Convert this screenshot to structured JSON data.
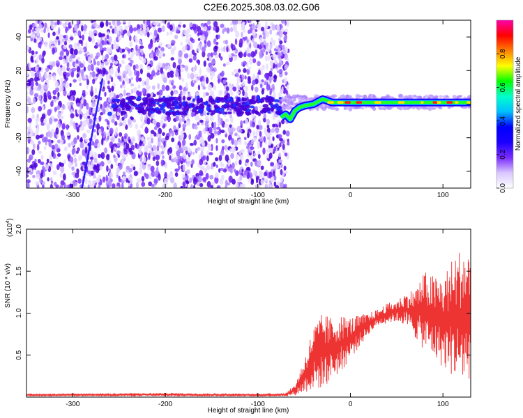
{
  "title": "C2E6.2025.308.03.02.G06",
  "chart_data": [
    {
      "type": "heatmap",
      "name": "spectrogram",
      "xlabel": "Height of straight line (km)",
      "ylabel": "Frequency (Hz)",
      "xlim": [
        -350,
        130
      ],
      "ylim": [
        -50,
        50
      ],
      "x_ticks": [
        -300,
        -200,
        -100,
        0,
        100
      ],
      "y_ticks": [
        -40,
        -20,
        0,
        20,
        40
      ],
      "noise_region_x": [
        -350,
        -75
      ],
      "carrier_track": [
        {
          "x": -75,
          "y": -8
        },
        {
          "x": -70,
          "y": -6
        },
        {
          "x": -65,
          "y": -9
        },
        {
          "x": -60,
          "y": -4
        },
        {
          "x": -55,
          "y": -2
        },
        {
          "x": -50,
          "y": -1
        },
        {
          "x": -40,
          "y": 0
        },
        {
          "x": -30,
          "y": 3
        },
        {
          "x": -20,
          "y": 1
        },
        {
          "x": 0,
          "y": 1
        },
        {
          "x": 20,
          "y": 1
        },
        {
          "x": 50,
          "y": 1
        },
        {
          "x": 80,
          "y": 1
        },
        {
          "x": 100,
          "y": 1
        },
        {
          "x": 130,
          "y": 1
        }
      ],
      "streak": {
        "x_start": -290,
        "y_start": -50,
        "x_end": -268,
        "y_end": 15
      },
      "colorbar": {
        "label": "Normalized spectral amplitude",
        "range": [
          0.0,
          1.0
        ],
        "ticks": [
          0.0,
          0.2,
          0.4,
          0.6,
          0.8
        ],
        "tick_labels": [
          "0.0",
          "0.2",
          "0.4",
          "0.6",
          "0.8"
        ],
        "colors": [
          "#ffffff",
          "#d9c6ff",
          "#7a2cff",
          "#1b00ff",
          "#0000ff",
          "#00bfff",
          "#00ffcc",
          "#00ff00",
          "#ffff00",
          "#ff8000",
          "#ff0000",
          "#ff00aa"
        ]
      }
    },
    {
      "type": "line",
      "name": "snr",
      "xlabel": "Height of straight line (km)",
      "ylabel": "SNR (10 * v/v)",
      "y_multiplier": "(x10",
      "y_multiplier_exp": "4",
      "y_multiplier_close": ")",
      "xlim": [
        -350,
        130
      ],
      "ylim": [
        0,
        2.0
      ],
      "x_ticks": [
        -300,
        -200,
        -100,
        0,
        100
      ],
      "y_ticks": [
        0.5,
        1.0,
        1.5,
        2.0
      ],
      "y_tick_labels": [
        "0.5",
        "1.0",
        "1.5",
        "2.0"
      ],
      "series": [
        {
          "name": "SNR",
          "color": "#ee3333",
          "envelope": [
            {
              "x": -350,
              "low": 0.01,
              "high": 0.04
            },
            {
              "x": -200,
              "low": 0.01,
              "high": 0.05
            },
            {
              "x": -100,
              "low": 0.01,
              "high": 0.04
            },
            {
              "x": -70,
              "low": 0.01,
              "high": 0.05
            },
            {
              "x": -60,
              "low": 0.02,
              "high": 0.15
            },
            {
              "x": -50,
              "low": 0.05,
              "high": 0.45
            },
            {
              "x": -40,
              "low": 0.08,
              "high": 0.85
            },
            {
              "x": -30,
              "low": 0.1,
              "high": 1.0
            },
            {
              "x": -20,
              "low": 0.2,
              "high": 0.95
            },
            {
              "x": -10,
              "low": 0.3,
              "high": 0.98
            },
            {
              "x": 0,
              "low": 0.45,
              "high": 0.95
            },
            {
              "x": 10,
              "low": 0.6,
              "high": 0.98
            },
            {
              "x": 20,
              "low": 0.75,
              "high": 1.0
            },
            {
              "x": 30,
              "low": 0.85,
              "high": 1.05
            },
            {
              "x": 40,
              "low": 0.88,
              "high": 1.12
            },
            {
              "x": 50,
              "low": 0.9,
              "high": 1.15
            },
            {
              "x": 60,
              "low": 0.85,
              "high": 1.25
            },
            {
              "x": 70,
              "low": 0.7,
              "high": 1.3
            },
            {
              "x": 80,
              "low": 0.55,
              "high": 1.5
            },
            {
              "x": 90,
              "low": 0.45,
              "high": 1.45
            },
            {
              "x": 100,
              "low": 0.35,
              "high": 1.45
            },
            {
              "x": 110,
              "low": 0.25,
              "high": 1.65
            },
            {
              "x": 120,
              "low": 0.15,
              "high": 1.8
            },
            {
              "x": 130,
              "low": 0.2,
              "high": 1.75
            }
          ]
        }
      ]
    }
  ]
}
